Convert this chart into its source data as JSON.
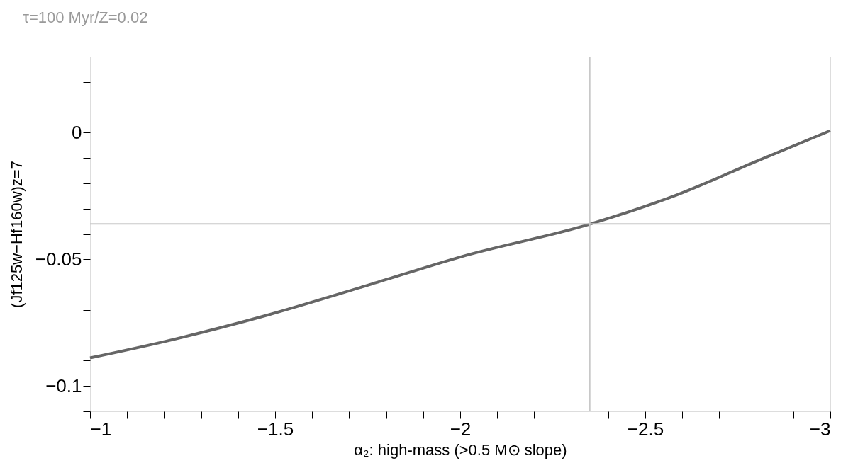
{
  "chart_data": {
    "type": "line",
    "title": "τ=100 Myr/Z=0.02",
    "xlabel": "α₂: high-mass (>0.5 M⊙ slope)",
    "ylabel": "(Jf125w−Hf160w)z=7",
    "x": [
      -1,
      -1.2,
      -1.48,
      -1.76,
      -2.0,
      -2.35,
      -2.59,
      -2.8,
      -3
    ],
    "series": [
      {
        "color": "#666666",
        "values": [
          -0.0889,
          -0.0825,
          -0.072,
          -0.0598,
          -0.0491,
          -0.0361,
          -0.0243,
          -0.0113,
          0.0008
        ]
      }
    ],
    "xlim": [
      -1,
      -3
    ],
    "ylim": [
      -0.11,
      0.03
    ],
    "xticks": [
      {
        "value": -1,
        "label": "−1"
      },
      {
        "value": -1.1,
        "label": null
      },
      {
        "value": -1.2,
        "label": null
      },
      {
        "value": -1.3,
        "label": null
      },
      {
        "value": -1.4,
        "label": null
      },
      {
        "value": -1.5,
        "label": "−1.5"
      },
      {
        "value": -1.6,
        "label": null
      },
      {
        "value": -1.7,
        "label": null
      },
      {
        "value": -1.8,
        "label": null
      },
      {
        "value": -1.9,
        "label": null
      },
      {
        "value": -2,
        "label": "−2"
      },
      {
        "value": -2.1,
        "label": null
      },
      {
        "value": -2.2,
        "label": null
      },
      {
        "value": -2.3,
        "label": null
      },
      {
        "value": -2.4,
        "label": null
      },
      {
        "value": -2.5,
        "label": "−2.5"
      },
      {
        "value": -2.6,
        "label": null
      },
      {
        "value": -2.7,
        "label": null
      },
      {
        "value": -2.8,
        "label": null
      },
      {
        "value": -2.9,
        "label": null
      },
      {
        "value": -3,
        "label": "−3"
      }
    ],
    "yticks": [
      {
        "value": -0.11,
        "label": null
      },
      {
        "value": -0.1,
        "label": "−0.1"
      },
      {
        "value": -0.09,
        "label": null
      },
      {
        "value": -0.08,
        "label": null
      },
      {
        "value": -0.07,
        "label": null
      },
      {
        "value": -0.06,
        "label": null
      },
      {
        "value": -0.05,
        "label": "−0.05"
      },
      {
        "value": -0.04,
        "label": null
      },
      {
        "value": -0.03,
        "label": null
      },
      {
        "value": -0.02,
        "label": null
      },
      {
        "value": -0.01,
        "label": null
      },
      {
        "value": 0,
        "label": "0"
      },
      {
        "value": 0.01,
        "label": null
      },
      {
        "value": 0.02,
        "label": null
      },
      {
        "value": 0.03,
        "label": null
      }
    ],
    "ref_lines": [
      {
        "axis": "x",
        "value": -2.35,
        "color": "#c8c8c8"
      },
      {
        "axis": "y",
        "value": -0.036,
        "color": "#c8c8c8"
      }
    ],
    "grid": false,
    "legend": false,
    "marker": "none",
    "line_style": "solid"
  }
}
